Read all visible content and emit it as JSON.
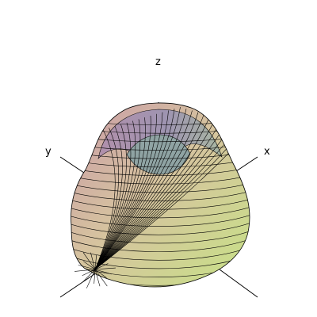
{
  "plot": {
    "type": "surface-3d",
    "axes": {
      "x_label": "x",
      "y_label": "y",
      "z_label": "z"
    },
    "surface_colors": {
      "top": "#9c8fb0",
      "left": "#c7a0a8",
      "front": "#d7c59a",
      "right": "#b9d98b",
      "bottom_right": "#cfe67f",
      "inner": "#8ea1a3"
    }
  }
}
